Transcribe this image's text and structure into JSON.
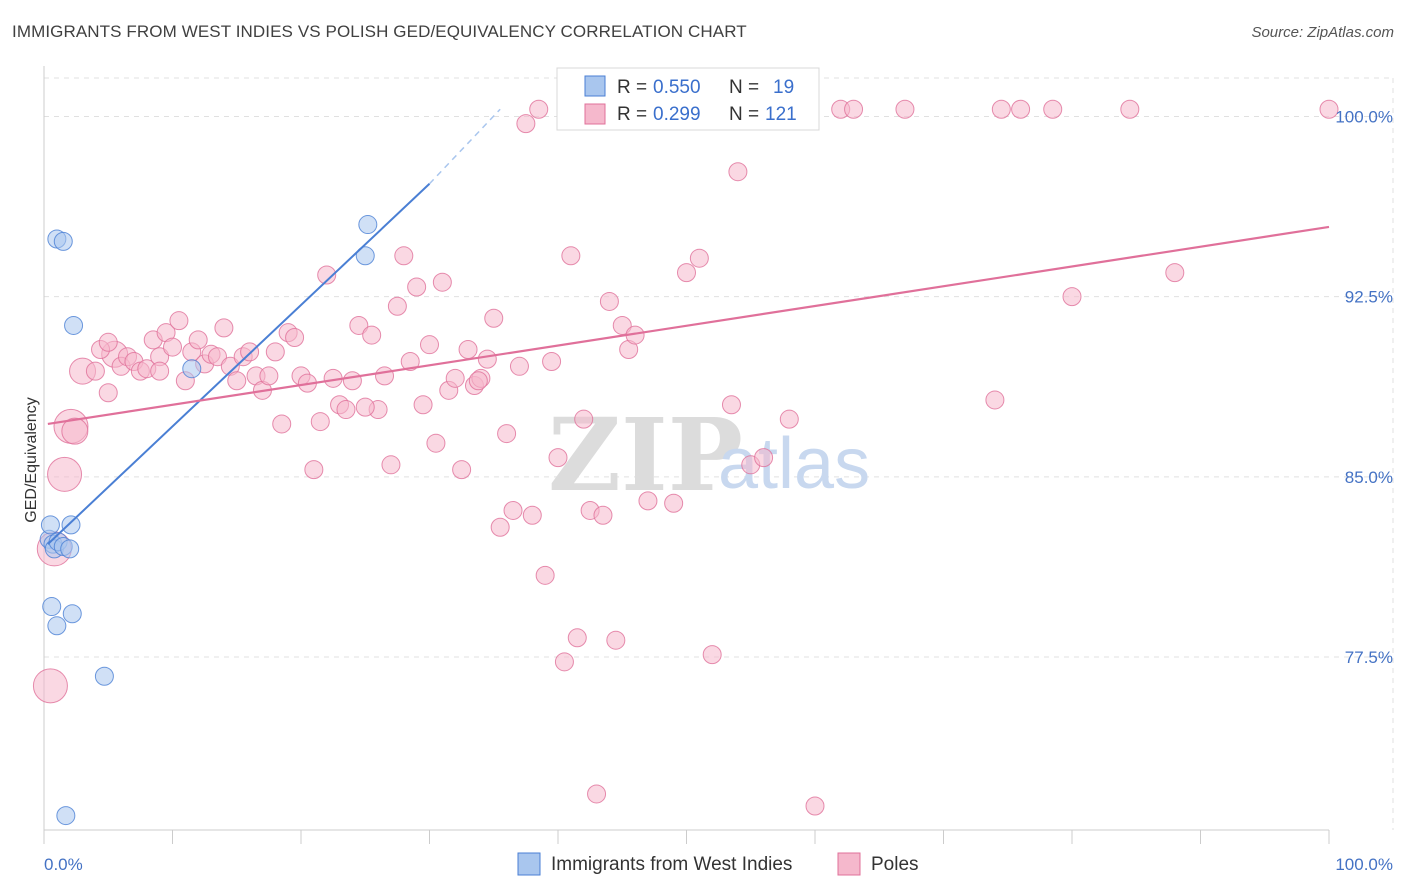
{
  "title": "IMMIGRANTS FROM WEST INDIES VS POLISH GED/EQUIVALENCY CORRELATION CHART",
  "source": "Source: ZipAtlas.com",
  "watermark": {
    "zip": "ZIP",
    "atlas": "atlas"
  },
  "colors": {
    "blue": "#4a7fd4",
    "blue_fill": "#a9c6ee",
    "pink": "#e0709a",
    "pink_fill": "#f5b8cc",
    "grid": "#e0e0e0",
    "tick_text": "#4472c4"
  },
  "legend": {
    "rows": [
      {
        "r_label": "R = ",
        "r_value": "0.550",
        "n_label": "N = ",
        "n_value": "19",
        "series": "blue"
      },
      {
        "r_label": "R = ",
        "r_value": "0.299",
        "n_label": "N = ",
        "n_value": "121",
        "series": "pink"
      }
    ]
  },
  "bottom_legend": [
    "Immigrants from West Indies",
    "Poles"
  ],
  "chart_data": {
    "type": "scatter",
    "title": "IMMIGRANTS FROM WEST INDIES VS POLISH GED/EQUIVALENCY CORRELATION CHART",
    "xlabel": "",
    "ylabel": "GED/Equivalency",
    "xlim": [
      0,
      100
    ],
    "ylim": [
      70.3,
      101.6
    ],
    "x_tick_labels": [
      "0.0%",
      "100.0%"
    ],
    "y_ticks": [
      77.5,
      85.0,
      92.5,
      100.0
    ],
    "y_tick_labels": [
      "77.5%",
      "85.0%",
      "92.5%",
      "100.0%"
    ],
    "grid": true,
    "legend_position": "top-center",
    "series": [
      {
        "name": "Immigrants from West Indies",
        "color": "#4a7fd4",
        "r": 0.55,
        "n": 19,
        "trend": {
          "x": [
            0.3,
            30.0
          ],
          "y": [
            82.2,
            97.2
          ],
          "dashed_to": [
            35.5,
            100.3
          ]
        },
        "points": [
          {
            "x": 1.0,
            "y": 94.9,
            "s": 1
          },
          {
            "x": 1.5,
            "y": 94.8,
            "s": 1
          },
          {
            "x": 2.3,
            "y": 91.3,
            "s": 1
          },
          {
            "x": 11.5,
            "y": 89.5,
            "s": 1
          },
          {
            "x": 25.0,
            "y": 94.2,
            "s": 1
          },
          {
            "x": 25.2,
            "y": 95.5,
            "s": 1
          },
          {
            "x": 0.4,
            "y": 82.4,
            "s": 1
          },
          {
            "x": 0.7,
            "y": 82.2,
            "s": 1
          },
          {
            "x": 0.8,
            "y": 82.0,
            "s": 1
          },
          {
            "x": 1.1,
            "y": 82.3,
            "s": 1
          },
          {
            "x": 1.5,
            "y": 82.1,
            "s": 1
          },
          {
            "x": 2.0,
            "y": 82.0,
            "s": 1
          },
          {
            "x": 2.1,
            "y": 83.0,
            "s": 1
          },
          {
            "x": 0.5,
            "y": 83.0,
            "s": 1
          },
          {
            "x": 0.6,
            "y": 79.6,
            "s": 1
          },
          {
            "x": 2.2,
            "y": 79.3,
            "s": 1
          },
          {
            "x": 1.0,
            "y": 78.8,
            "s": 1
          },
          {
            "x": 4.7,
            "y": 76.7,
            "s": 1
          },
          {
            "x": 1.7,
            "y": 70.9,
            "s": 1
          }
        ]
      },
      {
        "name": "Poles",
        "color": "#e0709a",
        "r": 0.299,
        "n": 121,
        "trend": {
          "x": [
            0.3,
            100.0
          ],
          "y": [
            87.2,
            95.4
          ]
        },
        "points": [
          {
            "x": 0.8,
            "y": 82.0,
            "s": 3
          },
          {
            "x": 0.5,
            "y": 76.3,
            "s": 3
          },
          {
            "x": 1.6,
            "y": 85.1,
            "s": 3
          },
          {
            "x": 2.1,
            "y": 87.1,
            "s": 3
          },
          {
            "x": 2.4,
            "y": 86.9,
            "s": 2
          },
          {
            "x": 3.0,
            "y": 89.4,
            "s": 2
          },
          {
            "x": 5.5,
            "y": 90.1,
            "s": 2
          },
          {
            "x": 5.0,
            "y": 88.5,
            "s": 1
          },
          {
            "x": 4.0,
            "y": 89.4,
            "s": 1
          },
          {
            "x": 4.4,
            "y": 90.3,
            "s": 1
          },
          {
            "x": 5.0,
            "y": 90.6,
            "s": 1
          },
          {
            "x": 6.0,
            "y": 89.6,
            "s": 1
          },
          {
            "x": 6.5,
            "y": 90.0,
            "s": 1
          },
          {
            "x": 7.0,
            "y": 89.8,
            "s": 1
          },
          {
            "x": 7.5,
            "y": 89.4,
            "s": 1
          },
          {
            "x": 8.0,
            "y": 89.5,
            "s": 1
          },
          {
            "x": 8.5,
            "y": 90.7,
            "s": 1
          },
          {
            "x": 9.0,
            "y": 90.0,
            "s": 1
          },
          {
            "x": 9.5,
            "y": 91.0,
            "s": 1
          },
          {
            "x": 10.0,
            "y": 90.4,
            "s": 1
          },
          {
            "x": 10.5,
            "y": 91.5,
            "s": 1
          },
          {
            "x": 11.0,
            "y": 89.0,
            "s": 1
          },
          {
            "x": 11.5,
            "y": 90.2,
            "s": 1
          },
          {
            "x": 12.0,
            "y": 90.7,
            "s": 1
          },
          {
            "x": 12.5,
            "y": 89.7,
            "s": 1
          },
          {
            "x": 13.0,
            "y": 90.1,
            "s": 1
          },
          {
            "x": 13.5,
            "y": 90.0,
            "s": 1
          },
          {
            "x": 14.0,
            "y": 91.2,
            "s": 1
          },
          {
            "x": 14.5,
            "y": 89.6,
            "s": 1
          },
          {
            "x": 15.0,
            "y": 89.0,
            "s": 1
          },
          {
            "x": 15.5,
            "y": 90.0,
            "s": 1
          },
          {
            "x": 16.0,
            "y": 90.2,
            "s": 1
          },
          {
            "x": 16.5,
            "y": 89.2,
            "s": 1
          },
          {
            "x": 17.0,
            "y": 88.6,
            "s": 1
          },
          {
            "x": 17.5,
            "y": 89.2,
            "s": 1
          },
          {
            "x": 18.0,
            "y": 90.2,
            "s": 1
          },
          {
            "x": 18.5,
            "y": 87.2,
            "s": 1
          },
          {
            "x": 19.0,
            "y": 91.0,
            "s": 1
          },
          {
            "x": 19.5,
            "y": 90.8,
            "s": 1
          },
          {
            "x": 20.0,
            "y": 89.2,
            "s": 1
          },
          {
            "x": 20.5,
            "y": 88.9,
            "s": 1
          },
          {
            "x": 21.0,
            "y": 85.3,
            "s": 1
          },
          {
            "x": 21.5,
            "y": 87.3,
            "s": 1
          },
          {
            "x": 22.0,
            "y": 93.4,
            "s": 1
          },
          {
            "x": 22.5,
            "y": 89.1,
            "s": 1
          },
          {
            "x": 23.0,
            "y": 88.0,
            "s": 1
          },
          {
            "x": 23.5,
            "y": 87.8,
            "s": 1
          },
          {
            "x": 24.0,
            "y": 89.0,
            "s": 1
          },
          {
            "x": 24.5,
            "y": 91.3,
            "s": 1
          },
          {
            "x": 25.5,
            "y": 90.9,
            "s": 1
          },
          {
            "x": 26.0,
            "y": 87.8,
            "s": 1
          },
          {
            "x": 26.5,
            "y": 89.2,
            "s": 1
          },
          {
            "x": 27.0,
            "y": 85.5,
            "s": 1
          },
          {
            "x": 27.5,
            "y": 92.1,
            "s": 1
          },
          {
            "x": 28.0,
            "y": 94.2,
            "s": 1
          },
          {
            "x": 28.5,
            "y": 89.8,
            "s": 1
          },
          {
            "x": 29.0,
            "y": 92.9,
            "s": 1
          },
          {
            "x": 29.5,
            "y": 88.0,
            "s": 1
          },
          {
            "x": 30.0,
            "y": 90.5,
            "s": 1
          },
          {
            "x": 30.5,
            "y": 86.4,
            "s": 1
          },
          {
            "x": 31.0,
            "y": 93.1,
            "s": 1
          },
          {
            "x": 31.5,
            "y": 88.6,
            "s": 1
          },
          {
            "x": 32.0,
            "y": 89.1,
            "s": 1
          },
          {
            "x": 32.5,
            "y": 85.3,
            "s": 1
          },
          {
            "x": 33.0,
            "y": 90.3,
            "s": 1
          },
          {
            "x": 33.5,
            "y": 88.8,
            "s": 1
          },
          {
            "x": 34.0,
            "y": 89.1,
            "s": 1
          },
          {
            "x": 34.5,
            "y": 89.9,
            "s": 1
          },
          {
            "x": 35.0,
            "y": 91.6,
            "s": 1
          },
          {
            "x": 35.5,
            "y": 82.9,
            "s": 1
          },
          {
            "x": 36.0,
            "y": 86.8,
            "s": 1
          },
          {
            "x": 36.5,
            "y": 83.6,
            "s": 1
          },
          {
            "x": 37.0,
            "y": 89.6,
            "s": 1
          },
          {
            "x": 37.5,
            "y": 99.7,
            "s": 1
          },
          {
            "x": 38.0,
            "y": 83.4,
            "s": 1
          },
          {
            "x": 38.5,
            "y": 100.3,
            "s": 1
          },
          {
            "x": 39.0,
            "y": 80.9,
            "s": 1
          },
          {
            "x": 39.5,
            "y": 89.8,
            "s": 1
          },
          {
            "x": 40.0,
            "y": 85.8,
            "s": 1
          },
          {
            "x": 40.5,
            "y": 77.3,
            "s": 1
          },
          {
            "x": 41.0,
            "y": 94.2,
            "s": 1
          },
          {
            "x": 41.5,
            "y": 78.3,
            "s": 1
          },
          {
            "x": 42.0,
            "y": 87.4,
            "s": 1
          },
          {
            "x": 42.5,
            "y": 83.6,
            "s": 1
          },
          {
            "x": 43.0,
            "y": 71.8,
            "s": 1
          },
          {
            "x": 43.5,
            "y": 83.4,
            "s": 1
          },
          {
            "x": 44.0,
            "y": 92.3,
            "s": 1
          },
          {
            "x": 44.5,
            "y": 78.2,
            "s": 1
          },
          {
            "x": 45.0,
            "y": 91.3,
            "s": 1
          },
          {
            "x": 45.5,
            "y": 90.3,
            "s": 1
          },
          {
            "x": 46.0,
            "y": 90.9,
            "s": 1
          },
          {
            "x": 47.0,
            "y": 84.0,
            "s": 1
          },
          {
            "x": 49.0,
            "y": 83.9,
            "s": 1
          },
          {
            "x": 50.0,
            "y": 93.5,
            "s": 1
          },
          {
            "x": 51.0,
            "y": 94.1,
            "s": 1
          },
          {
            "x": 52.0,
            "y": 77.6,
            "s": 1
          },
          {
            "x": 53.0,
            "y": 100.3,
            "s": 1
          },
          {
            "x": 54.0,
            "y": 97.7,
            "s": 1
          },
          {
            "x": 55.0,
            "y": 85.5,
            "s": 1
          },
          {
            "x": 56.0,
            "y": 85.8,
            "s": 1
          },
          {
            "x": 53.5,
            "y": 88.0,
            "s": 1
          },
          {
            "x": 58.0,
            "y": 87.4,
            "s": 1
          },
          {
            "x": 60.0,
            "y": 71.3,
            "s": 1
          },
          {
            "x": 62.0,
            "y": 100.3,
            "s": 1
          },
          {
            "x": 63.0,
            "y": 100.3,
            "s": 1
          },
          {
            "x": 67.0,
            "y": 100.3,
            "s": 1
          },
          {
            "x": 74.0,
            "y": 88.2,
            "s": 1
          },
          {
            "x": 74.5,
            "y": 100.3,
            "s": 1
          },
          {
            "x": 76.0,
            "y": 100.3,
            "s": 1
          },
          {
            "x": 78.5,
            "y": 100.3,
            "s": 1
          },
          {
            "x": 80.0,
            "y": 92.5,
            "s": 1
          },
          {
            "x": 84.5,
            "y": 100.3,
            "s": 1
          },
          {
            "x": 88.0,
            "y": 93.5,
            "s": 1
          },
          {
            "x": 100.0,
            "y": 100.3,
            "s": 1
          },
          {
            "x": 25.0,
            "y": 87.9,
            "s": 1
          },
          {
            "x": 9.0,
            "y": 89.4,
            "s": 1
          },
          {
            "x": 33.8,
            "y": 89.0,
            "s": 1
          }
        ]
      }
    ]
  }
}
